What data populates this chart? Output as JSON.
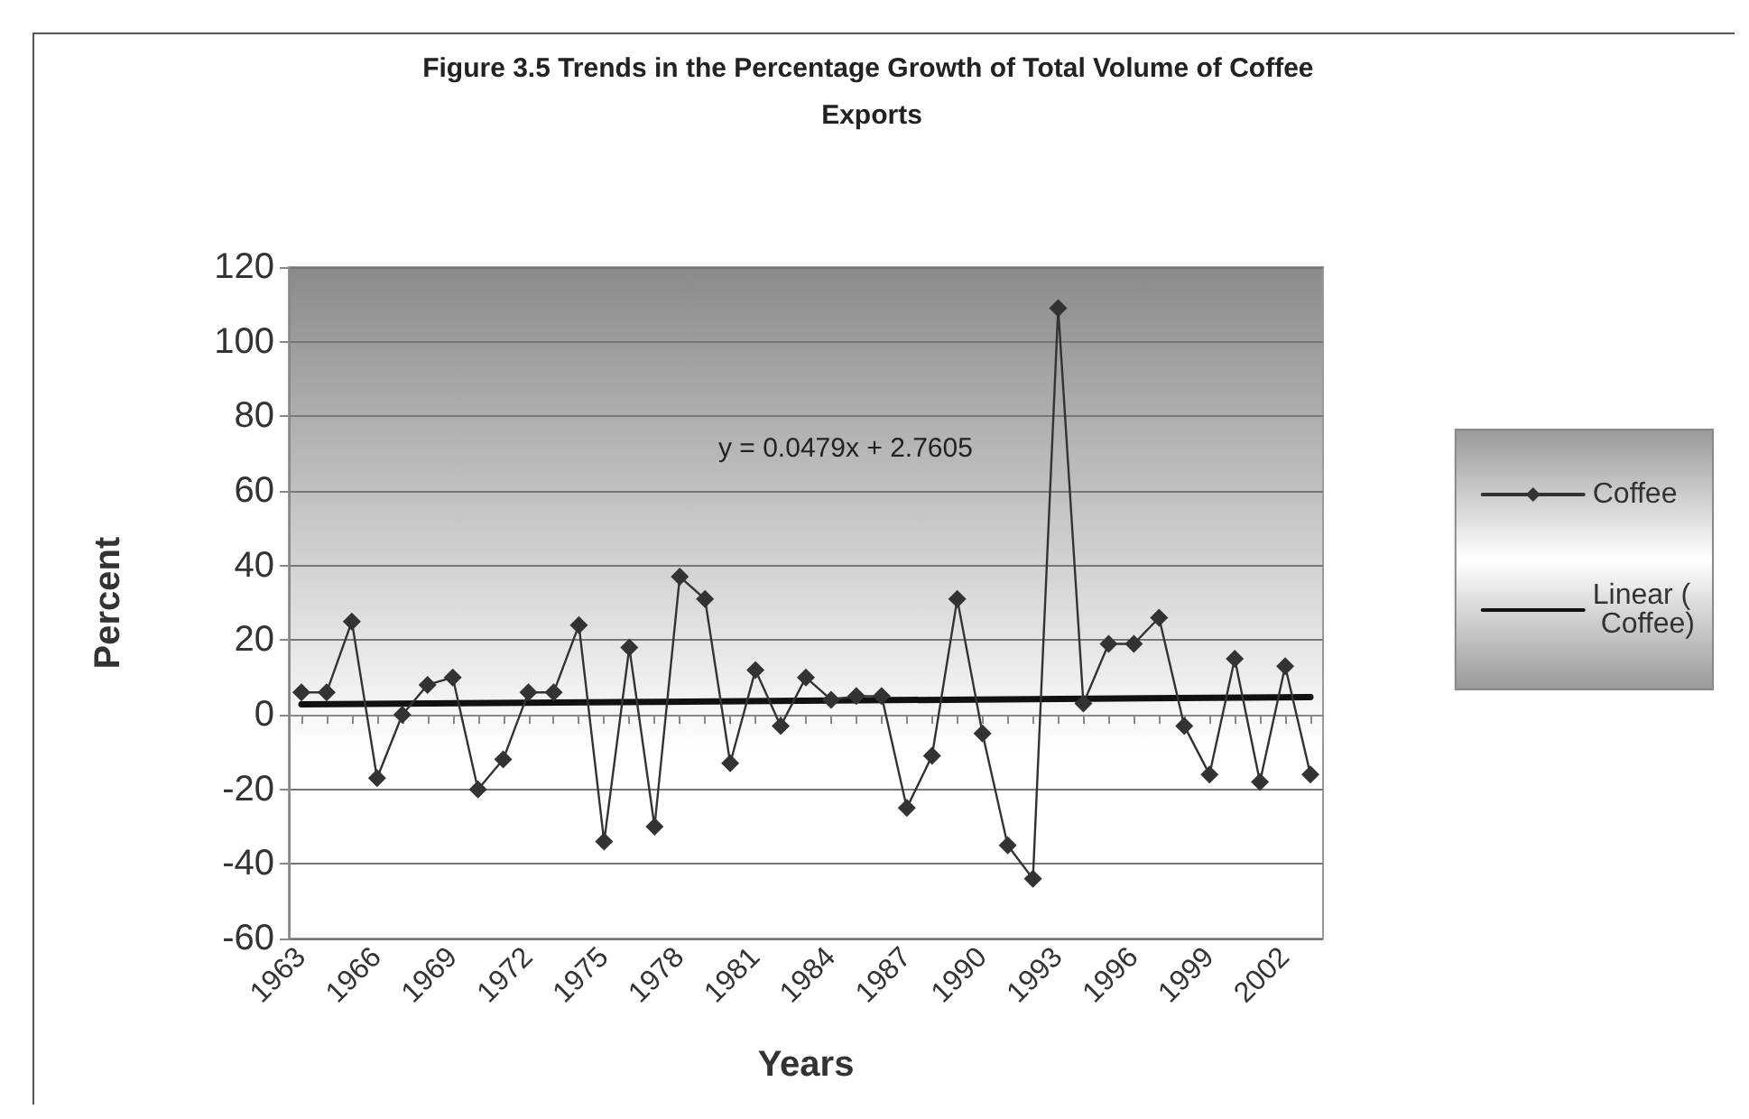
{
  "chart_data": {
    "type": "line",
    "title": "Figure 3.5 Trends in the Percentage Growth of Total Volume of Coffee Exports",
    "xlabel": "Years",
    "ylabel": "Percent",
    "categories": [
      "1963",
      null,
      null,
      "1966",
      null,
      null,
      "1969",
      null,
      null,
      "1972",
      null,
      null,
      "1975",
      null,
      null,
      "1978",
      null,
      null,
      "1981",
      null,
      null,
      "1984",
      null,
      null,
      "1987",
      null,
      null,
      "1990",
      null,
      null,
      "1993",
      null,
      null,
      "1996",
      null,
      null,
      "1999",
      null,
      null,
      "2002",
      null
    ],
    "series": [
      {
        "name": "Coffee",
        "color": "#333333",
        "values": [
          6,
          6,
          25,
          -17,
          0,
          8,
          10,
          -20,
          -12,
          6,
          6,
          24,
          -34,
          18,
          -30,
          37,
          31,
          -13,
          12,
          -3,
          10,
          4,
          5,
          5,
          -25,
          -11,
          31,
          -5,
          -35,
          -44,
          109,
          3,
          19,
          19,
          26,
          -3,
          -16,
          15,
          -18,
          13,
          -16
        ]
      },
      {
        "name": "Linear ( Coffee)",
        "type": "line",
        "marker": "none",
        "color": "#111111",
        "values": [
          2.8,
          null,
          null,
          null,
          null,
          null,
          null,
          null,
          null,
          null,
          null,
          null,
          null,
          null,
          null,
          null,
          null,
          null,
          null,
          null,
          null,
          null,
          null,
          null,
          null,
          null,
          null,
          null,
          null,
          null,
          null,
          null,
          null,
          null,
          null,
          null,
          null,
          null,
          null,
          null,
          4.7
        ]
      }
    ],
    "annotations": [
      "y = 0.0479x + 2.7605"
    ],
    "ylim": [
      -60,
      120
    ],
    "yticks": [
      -60,
      -40,
      -20,
      0,
      20,
      40,
      60,
      80,
      100,
      120
    ],
    "grid": "y",
    "legend": "right",
    "marker": "diamond"
  }
}
